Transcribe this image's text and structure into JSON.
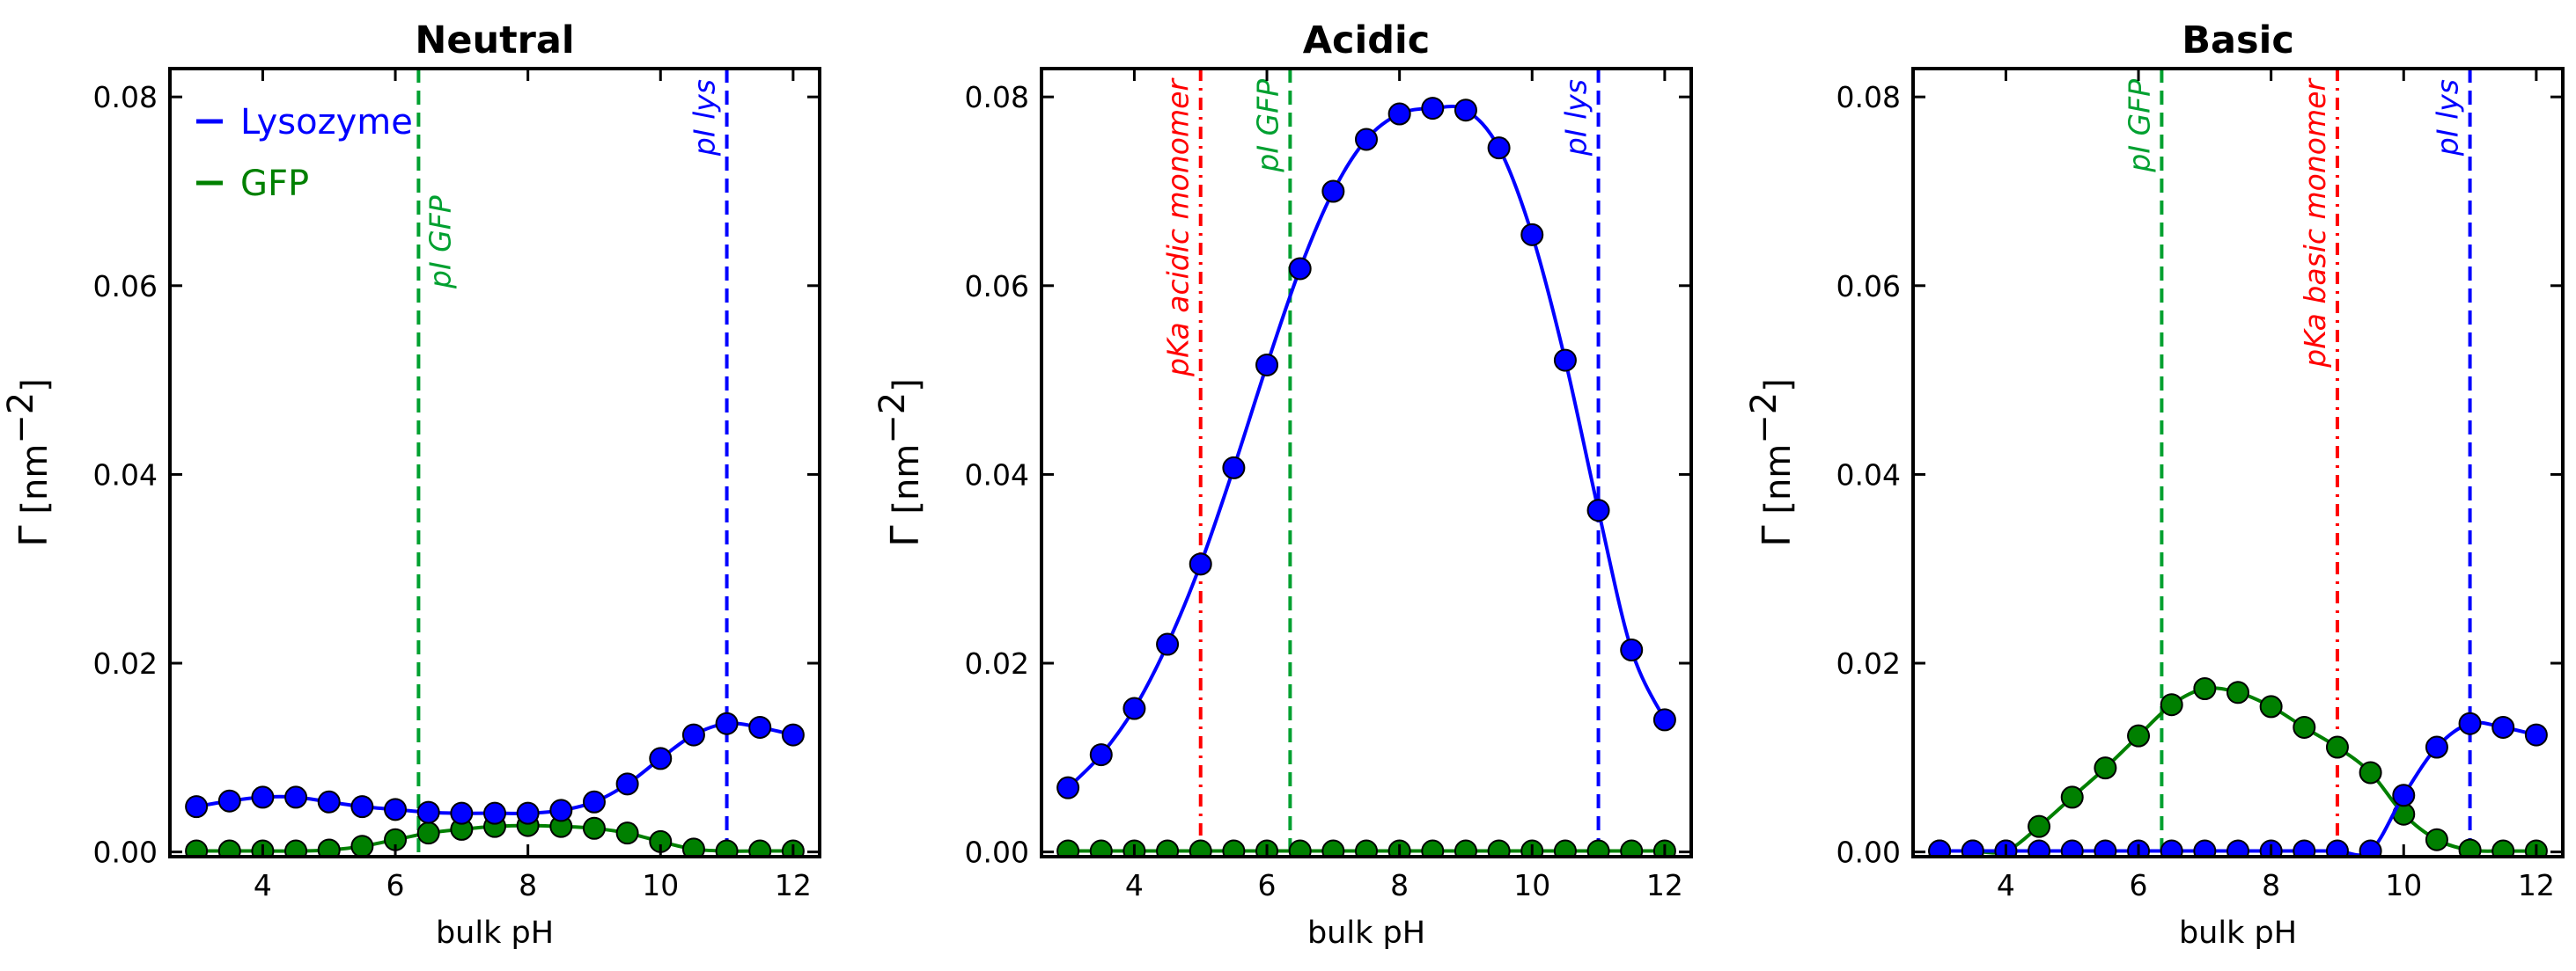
{
  "colors": {
    "lysozyme": "#0000ff",
    "gfp": "#008000",
    "pka": "#ff0000",
    "pi_gfp": "#00a030",
    "pi_lys": "#0000ff"
  },
  "legend": {
    "lysozyme_label": "Lysozyme",
    "gfp_label": "GFP"
  },
  "chart_data": [
    {
      "type": "line",
      "title": "Neutral",
      "xlabel": "bulk pH",
      "ylabel_symbol": "Γ",
      "ylabel_unit": " [nm",
      "ylabel_exp": "−2",
      "ylabel_close": "]",
      "xlim": [
        2.6,
        12.4
      ],
      "ylim": [
        -0.0005,
        0.083
      ],
      "xticks": [
        4,
        6,
        8,
        10,
        12
      ],
      "xtick_labels": [
        "4",
        "6",
        "8",
        "10",
        "12"
      ],
      "yticks": [
        0.0,
        0.02,
        0.04,
        0.06,
        0.08
      ],
      "ytick_labels": [
        "0.00",
        "0.02",
        "0.04",
        "0.06",
        "0.08"
      ],
      "show_legend": true,
      "vlines": [
        {
          "x": 6.35,
          "style": "dashed",
          "color": "pi_gfp",
          "label": "pI GFP"
        },
        {
          "x": 11.0,
          "style": "dashed",
          "color": "pi_lys",
          "label": "pI lys"
        }
      ],
      "series": [
        {
          "name": "Lysozyme",
          "color": "lysozyme",
          "x": [
            3.0,
            3.5,
            4.0,
            4.5,
            5.0,
            5.5,
            6.0,
            6.5,
            7.0,
            7.5,
            8.0,
            8.5,
            9.0,
            9.5,
            10.0,
            10.5,
            11.0,
            11.5,
            12.0
          ],
          "y": [
            0.0048,
            0.0054,
            0.0058,
            0.0058,
            0.0053,
            0.0048,
            0.0045,
            0.0042,
            0.0041,
            0.0041,
            0.0041,
            0.0044,
            0.0053,
            0.0072,
            0.0099,
            0.0124,
            0.0136,
            0.0132,
            0.0124
          ]
        },
        {
          "name": "GFP",
          "color": "gfp",
          "x": [
            3.0,
            3.5,
            4.0,
            4.5,
            5.0,
            5.5,
            6.0,
            6.5,
            7.0,
            7.5,
            8.0,
            8.5,
            9.0,
            9.5,
            10.0,
            10.5,
            11.0,
            11.5,
            12.0
          ],
          "y": [
            0.0001,
            0.0001,
            0.0001,
            0.0001,
            0.0002,
            0.0006,
            0.0013,
            0.002,
            0.0024,
            0.0027,
            0.0028,
            0.0027,
            0.0025,
            0.002,
            0.0011,
            0.0003,
            0.0001,
            0.0001,
            0.0001
          ]
        }
      ]
    },
    {
      "type": "line",
      "title": "Acidic",
      "xlabel": "bulk pH",
      "ylabel_symbol": "Γ",
      "ylabel_unit": " [nm",
      "ylabel_exp": "−2",
      "ylabel_close": "]",
      "xlim": [
        2.6,
        12.4
      ],
      "ylim": [
        -0.0005,
        0.083
      ],
      "xticks": [
        4,
        6,
        8,
        10,
        12
      ],
      "xtick_labels": [
        "4",
        "6",
        "8",
        "10",
        "12"
      ],
      "yticks": [
        0.0,
        0.02,
        0.04,
        0.06,
        0.08
      ],
      "ytick_labels": [
        "0.00",
        "0.02",
        "0.04",
        "0.06",
        "0.08"
      ],
      "show_legend": false,
      "vlines": [
        {
          "x": 5.0,
          "style": "dashdot",
          "color": "pka",
          "label": "pKa acidic monomer"
        },
        {
          "x": 6.35,
          "style": "dashed",
          "color": "pi_gfp",
          "label": "pI GFP"
        },
        {
          "x": 11.0,
          "style": "dashed",
          "color": "pi_lys",
          "label": "pI lys"
        }
      ],
      "series": [
        {
          "name": "Lysozyme",
          "color": "lysozyme",
          "x": [
            3.0,
            3.5,
            4.0,
            4.5,
            5.0,
            5.5,
            6.0,
            6.5,
            7.0,
            7.5,
            8.0,
            8.5,
            9.0,
            9.5,
            10.0,
            10.5,
            11.0,
            11.5,
            12.0
          ],
          "y": [
            0.0068,
            0.0103,
            0.0152,
            0.022,
            0.0305,
            0.0407,
            0.0516,
            0.0618,
            0.07,
            0.0755,
            0.0782,
            0.0788,
            0.0786,
            0.0746,
            0.0654,
            0.0521,
            0.0362,
            0.0214,
            0.014
          ]
        },
        {
          "name": "GFP",
          "color": "gfp",
          "x": [
            3.0,
            3.5,
            4.0,
            4.5,
            5.0,
            5.5,
            6.0,
            6.5,
            7.0,
            7.5,
            8.0,
            8.5,
            9.0,
            9.5,
            10.0,
            10.5,
            11.0,
            11.5,
            12.0
          ],
          "y": [
            0.0001,
            0.0001,
            0.0001,
            0.0001,
            0.0001,
            0.0001,
            0.0001,
            0.0001,
            0.0001,
            0.0001,
            0.0001,
            0.0001,
            0.0001,
            0.0001,
            0.0001,
            0.0001,
            0.0001,
            0.0001,
            0.0001
          ]
        }
      ]
    },
    {
      "type": "line",
      "title": "Basic",
      "xlabel": "bulk pH",
      "ylabel_symbol": "Γ",
      "ylabel_unit": " [nm",
      "ylabel_exp": "−2",
      "ylabel_close": "]",
      "xlim": [
        2.6,
        12.4
      ],
      "ylim": [
        -0.0005,
        0.083
      ],
      "xticks": [
        4,
        6,
        8,
        10,
        12
      ],
      "xtick_labels": [
        "4",
        "6",
        "8",
        "10",
        "12"
      ],
      "yticks": [
        0.0,
        0.02,
        0.04,
        0.06,
        0.08
      ],
      "ytick_labels": [
        "0.00",
        "0.02",
        "0.04",
        "0.06",
        "0.08"
      ],
      "show_legend": false,
      "vlines": [
        {
          "x": 6.35,
          "style": "dashed",
          "color": "pi_gfp",
          "label": "pI GFP"
        },
        {
          "x": 9.0,
          "style": "dashdot",
          "color": "pka",
          "label": "pKa basic monomer"
        },
        {
          "x": 11.0,
          "style": "dashed",
          "color": "pi_lys",
          "label": "pI lys"
        }
      ],
      "series": [
        {
          "name": "Lysozyme",
          "color": "lysozyme",
          "x": [
            3.0,
            3.5,
            4.0,
            4.5,
            5.0,
            5.5,
            6.0,
            6.5,
            7.0,
            7.5,
            8.0,
            8.5,
            9.0,
            9.5,
            10.0,
            10.5,
            11.0,
            11.5,
            12.0
          ],
          "y": [
            0.0001,
            0.0001,
            0.0001,
            0.0001,
            0.0001,
            0.0001,
            0.0001,
            0.0001,
            0.0001,
            0.0001,
            0.0001,
            0.0001,
            0.0001,
            0.0001,
            0.006,
            0.0111,
            0.0136,
            0.0132,
            0.0124
          ]
        },
        {
          "name": "GFP",
          "color": "gfp",
          "x": [
            3.0,
            3.5,
            4.0,
            4.5,
            5.0,
            5.5,
            6.0,
            6.5,
            7.0,
            7.5,
            8.0,
            8.5,
            9.0,
            9.5,
            10.0,
            10.5,
            11.0,
            11.5,
            12.0
          ],
          "y": [
            0.0001,
            0.0001,
            0.0001,
            0.0027,
            0.0058,
            0.0089,
            0.0123,
            0.0156,
            0.0173,
            0.0169,
            0.0154,
            0.0132,
            0.0111,
            0.0084,
            0.004,
            0.0013,
            0.0002,
            0.0001,
            0.0001
          ]
        }
      ]
    }
  ]
}
